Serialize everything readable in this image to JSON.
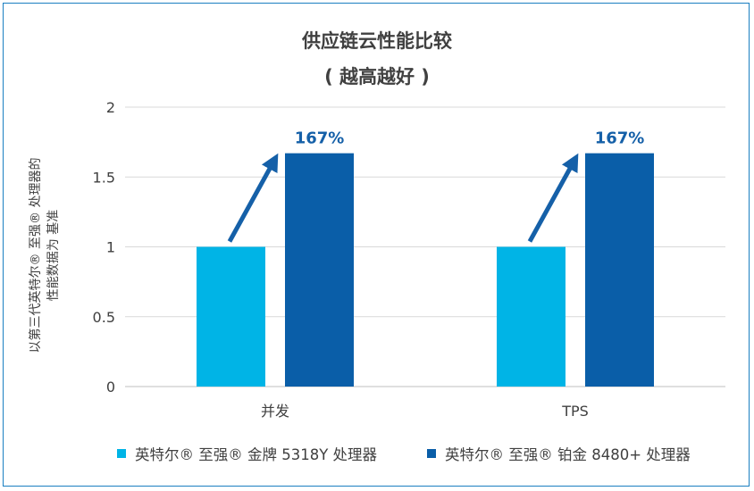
{
  "chart_data": {
    "type": "bar",
    "title": "供应链云性能比较",
    "subtitle": "( 越高越好 )",
    "ylabel_lines": [
      "以第三代英特尔® 至强® 处理器的",
      "性能数据为 基准"
    ],
    "xlabel": "",
    "categories": [
      "并发",
      "TPS"
    ],
    "ylim": [
      0,
      2
    ],
    "yticks": [
      0,
      0.5,
      1,
      1.5,
      2
    ],
    "ytick_labels": [
      "0",
      "0.5",
      "1",
      "1.5",
      "2"
    ],
    "grid": true,
    "legend_position": "bottom",
    "series": [
      {
        "name": "英特尔® 至强® 金牌 5318Y 处理器",
        "color": "#00b4e6",
        "values": [
          1,
          1
        ]
      },
      {
        "name": "英特尔® 至强® 铂金 8480+ 处理器",
        "color": "#0a5ea8",
        "values": [
          1.67,
          1.67
        ]
      }
    ],
    "annotations": [
      "167%",
      "167%"
    ],
    "annotation_color": "#1560a8"
  }
}
